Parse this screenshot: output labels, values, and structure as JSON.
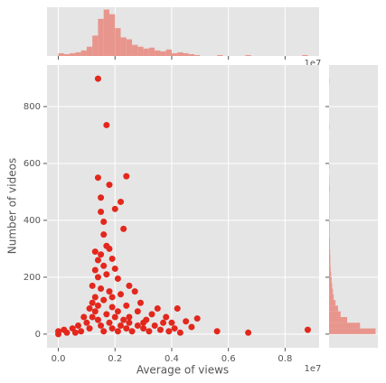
{
  "chart_data": {
    "type": "scatter",
    "x_label": "Average of views",
    "y_label": "Number of videos",
    "x_offset_label": "1e7",
    "xlim": [
      -0.04,
      0.92
    ],
    "ylim": [
      -48,
      946
    ],
    "xticks": [
      {
        "value": 0,
        "label": "0.0"
      },
      0.2,
      0.4,
      0.6,
      0.8
    ],
    "yticks": [
      0,
      200,
      400,
      600,
      800
    ],
    "grid": true,
    "color": "#e3271d",
    "x": [
      0.14,
      0.17,
      0.24,
      0.14,
      0.18,
      0.15,
      0.22,
      0.2,
      0.15,
      0.16,
      0.23,
      0.16,
      0.13,
      0.17,
      0.18,
      0.15,
      0.14,
      0.19,
      0.16,
      0.13,
      0.2,
      0.17,
      0.14,
      0.21,
      0.12,
      0.15,
      0.25,
      0.18,
      0.22,
      0.13,
      0.16,
      0.27,
      0.29,
      0.24,
      0.19,
      0.35,
      0.42,
      0.33,
      0.28,
      0.38,
      0.4,
      0.45,
      0.49,
      0.47,
      0.56,
      0.67,
      0.88,
      0,
      0,
      0.03,
      0.05,
      0.07,
      0.08,
      0.1,
      0.11,
      0.12,
      0.13,
      0.14,
      0.15,
      0.16,
      0.17,
      0.18,
      0.19,
      0.2,
      0.21,
      0.22,
      0.23,
      0.24,
      0.25,
      0.26,
      0.28,
      0.3,
      0.31,
      0.32,
      0.34,
      0.36,
      0.37,
      0.39,
      0.41,
      0.43,
      0.09,
      0.11,
      0.12,
      0.14,
      0.19,
      0.21,
      0.25,
      0.3,
      0.02,
      0.06
    ],
    "y": [
      898,
      735,
      555,
      550,
      525,
      480,
      465,
      440,
      430,
      395,
      370,
      350,
      290,
      310,
      300,
      280,
      260,
      265,
      240,
      225,
      230,
      210,
      200,
      195,
      170,
      160,
      170,
      150,
      140,
      130,
      120,
      150,
      110,
      100,
      95,
      90,
      90,
      70,
      80,
      60,
      40,
      45,
      55,
      25,
      10,
      5,
      15,
      0,
      10,
      5,
      20,
      30,
      10,
      40,
      20,
      60,
      80,
      50,
      30,
      10,
      70,
      40,
      20,
      60,
      10,
      30,
      50,
      20,
      40,
      10,
      30,
      20,
      50,
      10,
      30,
      15,
      40,
      10,
      20,
      5,
      60,
      90,
      110,
      100,
      130,
      80,
      60,
      40,
      15,
      5
    ],
    "top_hist": {
      "color": "#e8968d",
      "bins": [
        0,
        0.02,
        0.04,
        0.06,
        0.08,
        0.1,
        0.12,
        0.14,
        0.16,
        0.18,
        0.2,
        0.22,
        0.24,
        0.26,
        0.28,
        0.3,
        0.32,
        0.34,
        0.36,
        0.38,
        0.4,
        0.42,
        0.44,
        0.46,
        0.48,
        0.5,
        0.52,
        0.54,
        0.56,
        0.58,
        0.6,
        0.62,
        0.64,
        0.66,
        0.68,
        0.7,
        0.72,
        0.74,
        0.76,
        0.78,
        0.8,
        0.82,
        0.84,
        0.86,
        0.88
      ],
      "counts": [
        3,
        2,
        3,
        4,
        6,
        10,
        22,
        40,
        50,
        45,
        30,
        20,
        18,
        12,
        10,
        8,
        9,
        6,
        5,
        7,
        3,
        4,
        3,
        2,
        1,
        0,
        0,
        0,
        1,
        0,
        0,
        0,
        0,
        1,
        0,
        0,
        0,
        0,
        0,
        0,
        0,
        0,
        0,
        1
      ]
    },
    "right_hist": {
      "color": "#e8968d",
      "bins": [
        0,
        20,
        40,
        60,
        80,
        100,
        120,
        140,
        160,
        180,
        200,
        220,
        240,
        260,
        280,
        300,
        320,
        340,
        360,
        380,
        400,
        420,
        440,
        460,
        480,
        500,
        520,
        540,
        560,
        580,
        600,
        620,
        640,
        660,
        680,
        700,
        720,
        740,
        760,
        780,
        800,
        820,
        840,
        860,
        880,
        900
      ],
      "counts": [
        180,
        120,
        70,
        45,
        35,
        25,
        18,
        15,
        12,
        10,
        8,
        6,
        5,
        5,
        4,
        3,
        3,
        2,
        2,
        2,
        1,
        1,
        1,
        1,
        1,
        2,
        1,
        1,
        0,
        1,
        0,
        0,
        0,
        0,
        0,
        0,
        1,
        0,
        0,
        0,
        0,
        0,
        0,
        0,
        1
      ]
    }
  }
}
